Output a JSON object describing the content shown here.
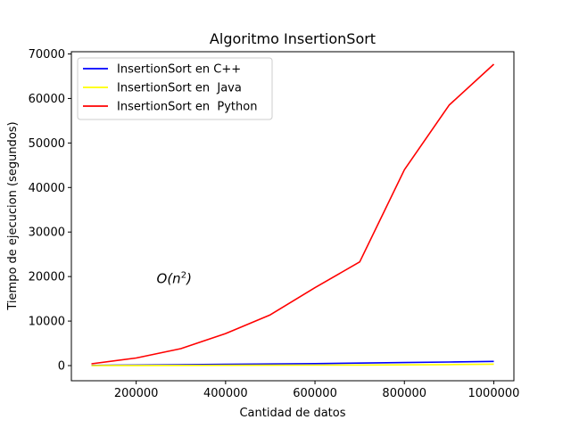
{
  "chart_data": {
    "type": "line",
    "title": "Algoritmo InsertionSort",
    "xlabel": "Cantidad de datos",
    "ylabel": "Tiempo de ejecucion (segundos)",
    "xlim": [
      55000,
      1045000
    ],
    "ylim": [
      -3400,
      70500
    ],
    "x_ticks": [
      200000,
      400000,
      600000,
      800000,
      1000000
    ],
    "x_tick_labels": [
      "200000",
      "400000",
      "600000",
      "800000",
      "1000000"
    ],
    "y_ticks": [
      0,
      10000,
      20000,
      30000,
      40000,
      50000,
      60000,
      70000
    ],
    "y_tick_labels": [
      "0",
      "10000",
      "20000",
      "30000",
      "40000",
      "50000",
      "60000",
      "70000"
    ],
    "grid": false,
    "legend_position": "top-left",
    "annotation": {
      "text": "O(n",
      "superscript": "2",
      "suffix": ")",
      "x": 285000,
      "y": 18500
    },
    "x": [
      100000,
      200000,
      300000,
      400000,
      500000,
      600000,
      700000,
      800000,
      900000,
      1000000
    ],
    "series": [
      {
        "name": "InsertionSort en C++",
        "color": "#0000ff",
        "values": [
          40,
          120,
          190,
          280,
          370,
          450,
          560,
          680,
          800,
          950
        ]
      },
      {
        "name": "InsertionSort en  Java",
        "color": "#ffff00",
        "values": [
          10,
          20,
          40,
          60,
          80,
          100,
          130,
          170,
          230,
          320
        ]
      },
      {
        "name": "InsertionSort en  Python",
        "color": "#ff0000",
        "values": [
          400,
          1700,
          3800,
          7200,
          11400,
          17500,
          23300,
          44000,
          58500,
          67700
        ]
      }
    ]
  }
}
